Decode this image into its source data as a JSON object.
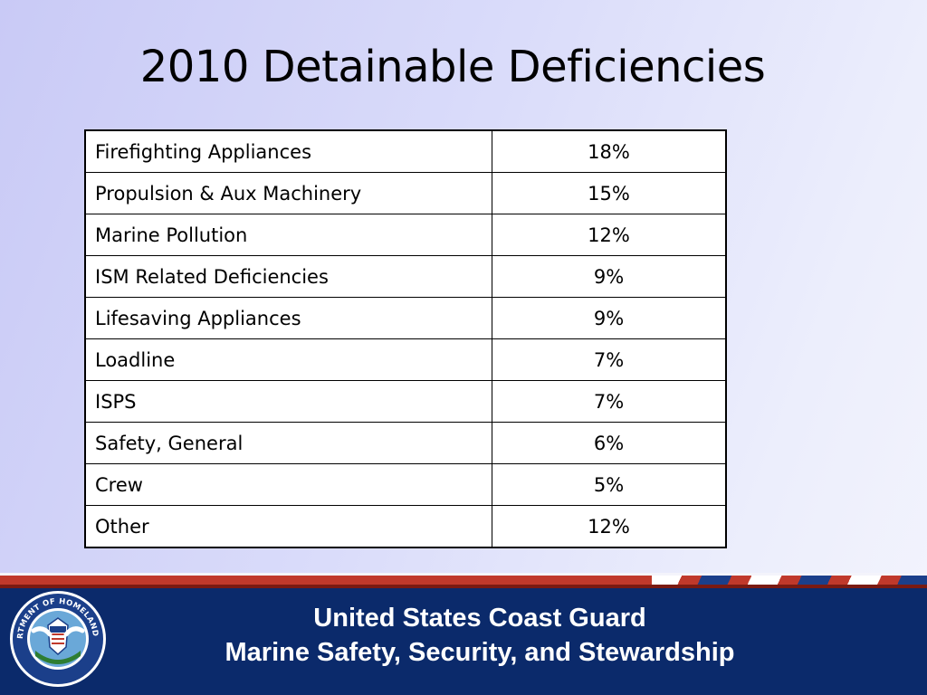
{
  "slide": {
    "title": "2010 Detainable Deficiencies",
    "table": {
      "rows": [
        {
          "category": "Firefighting Appliances",
          "percent": "18%"
        },
        {
          "category": "Propulsion & Aux Machinery",
          "percent": "15%"
        },
        {
          "category": "Marine Pollution",
          "percent": "12%"
        },
        {
          "category": "ISM Related Deficiencies",
          "percent": "9%"
        },
        {
          "category": "Lifesaving Appliances",
          "percent": "9%"
        },
        {
          "category": "Loadline",
          "percent": "7%"
        },
        {
          "category": "ISPS",
          "percent": "7%"
        },
        {
          "category": "Safety, General",
          "percent": "6%"
        },
        {
          "category": "Crew",
          "percent": "5%"
        },
        {
          "category": "Other",
          "percent": "12%"
        }
      ]
    }
  },
  "footer": {
    "line1": "United States Coast Guard",
    "line2": "Marine Safety, Security, and Stewardship",
    "seal_text": "U.S. DEPARTMENT OF HOMELAND SECURITY"
  },
  "colors": {
    "footer_blue": "#0b2a6b",
    "stripe_red": "#c0392b",
    "background": "#dadcfa"
  }
}
